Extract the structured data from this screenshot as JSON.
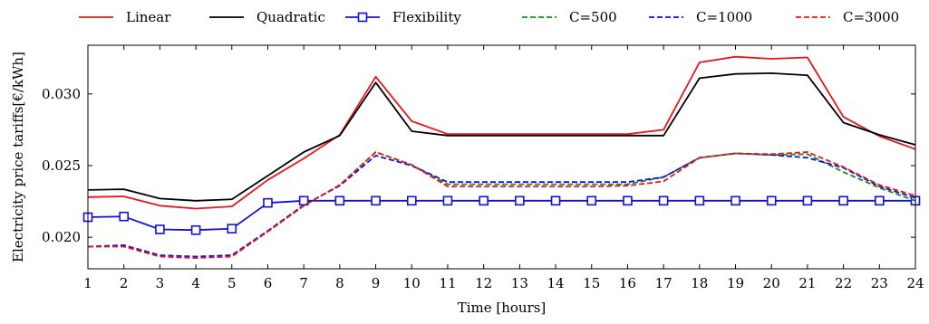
{
  "chart_data": {
    "type": "line",
    "title": "",
    "xlabel": "Time [hours]",
    "ylabel": "Electricity price tariffs[€/kWh]",
    "x": [
      1,
      2,
      3,
      4,
      5,
      6,
      7,
      8,
      9,
      10,
      11,
      12,
      13,
      14,
      15,
      16,
      17,
      18,
      19,
      20,
      21,
      22,
      23,
      24
    ],
    "xlim": [
      1,
      24
    ],
    "ylim": [
      0.0178,
      0.0334
    ],
    "yticks": [
      0.02,
      0.025,
      0.03
    ],
    "ytick_labels": [
      "0.020",
      "0.025",
      "0.030"
    ],
    "xtick_labels": [
      "1",
      "2",
      "3",
      "4",
      "5",
      "6",
      "7",
      "8",
      "9",
      "10",
      "11",
      "12",
      "13",
      "14",
      "15",
      "16",
      "17",
      "18",
      "19",
      "20",
      "21",
      "22",
      "23",
      "24"
    ],
    "grid": false,
    "legend_placement": "top, outside plot area",
    "series": [
      {
        "name": "Linear",
        "color": "#e8161b",
        "style": "solid",
        "marker": "none",
        "values": [
          0.0228,
          0.02285,
          0.0222,
          0.022,
          0.02215,
          0.024,
          0.0255,
          0.02715,
          0.0312,
          0.0281,
          0.0272,
          0.0272,
          0.0272,
          0.0272,
          0.0272,
          0.0272,
          0.0275,
          0.0322,
          0.0326,
          0.03245,
          0.03255,
          0.0284,
          0.02705,
          0.02615
        ]
      },
      {
        "name": "Quadratic",
        "color": "#000000",
        "style": "solid",
        "marker": "none",
        "values": [
          0.0233,
          0.02335,
          0.0227,
          0.02255,
          0.02265,
          0.0243,
          0.02595,
          0.0271,
          0.0308,
          0.0274,
          0.0271,
          0.0271,
          0.0271,
          0.0271,
          0.0271,
          0.0271,
          0.0271,
          0.0311,
          0.0314,
          0.03145,
          0.0313,
          0.028,
          0.02715,
          0.02645
        ]
      },
      {
        "name": "Flexibility",
        "color": "#1010e0",
        "style": "solid",
        "marker": "square",
        "values": [
          0.0214,
          0.02145,
          0.02055,
          0.0205,
          0.0206,
          0.0224,
          0.02255,
          0.02255,
          0.02255,
          0.02255,
          0.02255,
          0.02255,
          0.02255,
          0.02255,
          0.02255,
          0.02255,
          0.02255,
          0.02255,
          0.02255,
          0.02255,
          0.02255,
          0.02255,
          0.02255,
          0.02255
        ]
      },
      {
        "name": "C=500",
        "color": "#1a8a1a",
        "style": "dashed",
        "marker": "none",
        "values": [
          0.01935,
          0.0194,
          0.0187,
          0.0186,
          0.01875,
          0.0204,
          0.0222,
          0.02365,
          0.02595,
          0.02505,
          0.0237,
          0.0237,
          0.0237,
          0.0237,
          0.0237,
          0.0237,
          0.0242,
          0.02555,
          0.02585,
          0.02575,
          0.0258,
          0.02455,
          0.02345,
          0.02255
        ]
      },
      {
        "name": "C=1000",
        "color": "#1010e0",
        "style": "dashed",
        "marker": "none",
        "values": [
          0.01935,
          0.01945,
          0.01875,
          0.01865,
          0.01875,
          0.02045,
          0.02225,
          0.0236,
          0.0257,
          0.025,
          0.02385,
          0.02385,
          0.02385,
          0.02385,
          0.02385,
          0.02385,
          0.0242,
          0.02555,
          0.02585,
          0.02575,
          0.02555,
          0.02485,
          0.02355,
          0.02275
        ]
      },
      {
        "name": "C=3000",
        "color": "#e8161b",
        "style": "dashed",
        "marker": "none",
        "values": [
          0.01935,
          0.01935,
          0.01865,
          0.01855,
          0.01865,
          0.0204,
          0.0222,
          0.02365,
          0.02595,
          0.02505,
          0.02355,
          0.02355,
          0.02355,
          0.02355,
          0.02355,
          0.0236,
          0.0239,
          0.02555,
          0.02585,
          0.0258,
          0.02595,
          0.0249,
          0.02365,
          0.0229
        ]
      }
    ]
  }
}
